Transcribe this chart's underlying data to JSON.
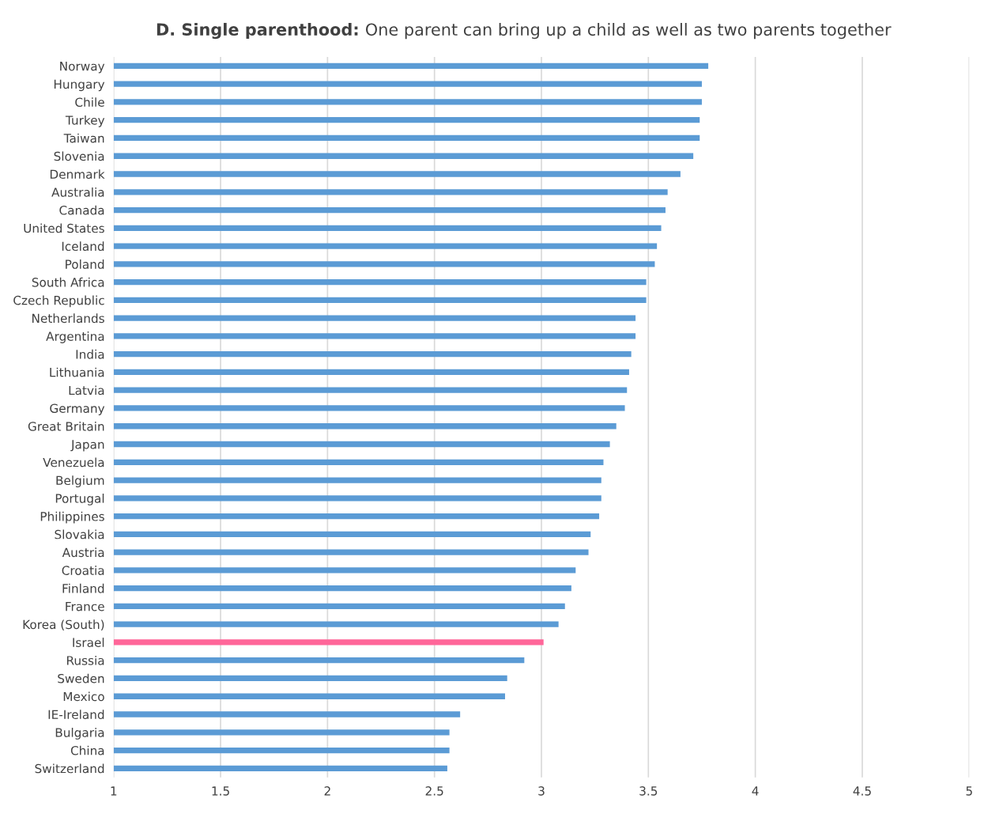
{
  "chart_data": {
    "type": "bar",
    "orientation": "horizontal",
    "title": "D. Single parenthood:",
    "subtitle": "One parent can bring up a child as well as two parents together",
    "categories": [
      "Norway",
      "Hungary",
      "Chile",
      "Turkey",
      "Taiwan",
      "Slovenia",
      "Denmark",
      "Australia",
      "Canada",
      "United States",
      "Iceland",
      "Poland",
      "South Africa",
      "Czech Republic",
      "Netherlands",
      "Argentina",
      "India",
      "Lithuania",
      "Latvia",
      "Germany",
      "Great Britain",
      "Japan",
      "Venezuela",
      "Belgium",
      "Portugal",
      "Philippines",
      "Slovakia",
      "Austria",
      "Croatia",
      "Finland",
      "France",
      "Korea (South)",
      "Israel",
      "Russia",
      "Sweden",
      "Mexico",
      "IE-Ireland",
      "Bulgaria",
      "China",
      "Switzerland"
    ],
    "values": [
      3.78,
      3.75,
      3.75,
      3.74,
      3.74,
      3.71,
      3.65,
      3.59,
      3.58,
      3.56,
      3.54,
      3.53,
      3.49,
      3.49,
      3.44,
      3.44,
      3.42,
      3.41,
      3.4,
      3.39,
      3.35,
      3.32,
      3.29,
      3.28,
      3.28,
      3.27,
      3.23,
      3.22,
      3.16,
      3.14,
      3.11,
      3.08,
      3.01,
      2.92,
      2.84,
      2.83,
      2.62,
      2.57,
      2.57,
      2.56
    ],
    "colors": [
      "#5b9bd5",
      "#5b9bd5",
      "#5b9bd5",
      "#5b9bd5",
      "#5b9bd5",
      "#5b9bd5",
      "#5b9bd5",
      "#5b9bd5",
      "#5b9bd5",
      "#5b9bd5",
      "#5b9bd5",
      "#5b9bd5",
      "#5b9bd5",
      "#5b9bd5",
      "#5b9bd5",
      "#5b9bd5",
      "#5b9bd5",
      "#5b9bd5",
      "#5b9bd5",
      "#5b9bd5",
      "#5b9bd5",
      "#5b9bd5",
      "#5b9bd5",
      "#5b9bd5",
      "#5b9bd5",
      "#5b9bd5",
      "#5b9bd5",
      "#5b9bd5",
      "#5b9bd5",
      "#5b9bd5",
      "#5b9bd5",
      "#5b9bd5",
      "#ff6699",
      "#5b9bd5",
      "#5b9bd5",
      "#5b9bd5",
      "#5b9bd5",
      "#5b9bd5",
      "#5b9bd5",
      "#5b9bd5"
    ],
    "xlim": [
      1,
      5
    ],
    "xticks": [
      1,
      1.5,
      2,
      2.5,
      3,
      3.5,
      4,
      4.5,
      5
    ],
    "grid": "x",
    "legend": false
  }
}
